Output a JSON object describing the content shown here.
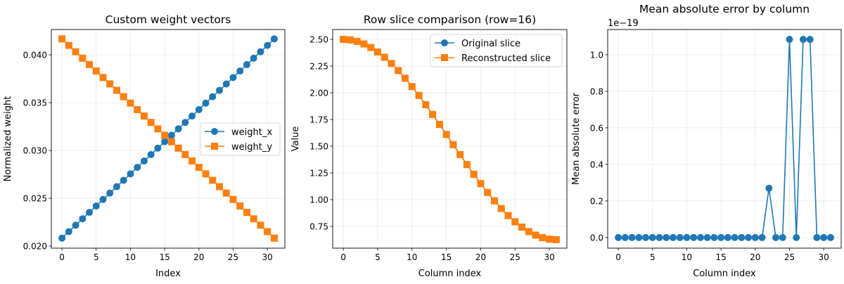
{
  "chart_data": [
    {
      "type": "line",
      "title": "Custom weight vectors",
      "xlabel": "Index",
      "ylabel": "Normalized weight",
      "xlim": [
        -1.55,
        32.55
      ],
      "ylim": [
        0.01978,
        0.04265
      ],
      "xticks": [
        0,
        5,
        10,
        15,
        20,
        25,
        30
      ],
      "xtick_labels": [
        "0",
        "5",
        "10",
        "15",
        "20",
        "25",
        "30"
      ],
      "yticks": [
        0.02,
        0.025,
        0.03,
        0.035,
        0.04
      ],
      "ytick_labels": [
        "0.020",
        "0.025",
        "0.030",
        "0.035",
        "0.040"
      ],
      "grid": true,
      "legend": "center-right",
      "x": [
        0,
        1,
        2,
        3,
        4,
        5,
        6,
        7,
        8,
        9,
        10,
        11,
        12,
        13,
        14,
        15,
        16,
        17,
        18,
        19,
        20,
        21,
        22,
        23,
        24,
        25,
        26,
        27,
        28,
        29,
        30,
        31
      ],
      "series": [
        {
          "name": "weight_x",
          "color": "#1f77b4",
          "marker": "circle",
          "values": [
            0.02083,
            0.02151,
            0.02218,
            0.02285,
            0.02352,
            0.02419,
            0.02487,
            0.02554,
            0.02621,
            0.02688,
            0.02755,
            0.02823,
            0.0289,
            0.02957,
            0.03024,
            0.03091,
            0.03159,
            0.03226,
            0.03293,
            0.0336,
            0.03427,
            0.03495,
            0.03562,
            0.03629,
            0.03696,
            0.03763,
            0.03831,
            0.03898,
            0.03965,
            0.04032,
            0.04099,
            0.04167
          ]
        },
        {
          "name": "weight_y",
          "color": "#ff7f0e",
          "marker": "square",
          "values": [
            0.04167,
            0.04099,
            0.04032,
            0.03965,
            0.03898,
            0.03831,
            0.03763,
            0.03696,
            0.03629,
            0.03562,
            0.03495,
            0.03427,
            0.0336,
            0.03293,
            0.03226,
            0.03159,
            0.03091,
            0.03024,
            0.02957,
            0.0289,
            0.02823,
            0.02755,
            0.02688,
            0.02621,
            0.02554,
            0.02487,
            0.02419,
            0.02352,
            0.02285,
            0.02218,
            0.02151,
            0.02083
          ]
        }
      ]
    },
    {
      "type": "line",
      "title": "Row slice comparison (row=16)",
      "xlabel": "Column index",
      "ylabel": "Value",
      "xlim": [
        -1.55,
        32.55
      ],
      "ylim": [
        0.546,
        2.592
      ],
      "xticks": [
        0,
        5,
        10,
        15,
        20,
        25,
        30
      ],
      "xtick_labels": [
        "0",
        "5",
        "10",
        "15",
        "20",
        "25",
        "30"
      ],
      "yticks": [
        0.75,
        1.0,
        1.25,
        1.5,
        1.75,
        2.0,
        2.25,
        2.5
      ],
      "ytick_labels": [
        "0.75",
        "1.00",
        "1.25",
        "1.50",
        "1.75",
        "2.00",
        "2.25",
        "2.50"
      ],
      "grid": true,
      "legend": "top-right",
      "x": [
        0,
        1,
        2,
        3,
        4,
        5,
        6,
        7,
        8,
        9,
        10,
        11,
        12,
        13,
        14,
        15,
        16,
        17,
        18,
        19,
        20,
        21,
        22,
        23,
        24,
        25,
        26,
        27,
        28,
        29,
        30,
        31
      ],
      "series": [
        {
          "name": "Original slice",
          "color": "#1f77b4",
          "marker": "circle",
          "values": [
            2.5,
            2.495,
            2.481,
            2.457,
            2.424,
            2.382,
            2.332,
            2.274,
            2.208,
            2.136,
            2.058,
            1.975,
            1.888,
            1.797,
            1.704,
            1.61,
            1.515,
            1.421,
            1.328,
            1.237,
            1.15,
            1.067,
            0.989,
            0.917,
            0.851,
            0.793,
            0.743,
            0.701,
            0.668,
            0.644,
            0.63,
            0.625
          ]
        },
        {
          "name": "Reconstructed slice",
          "color": "#ff7f0e",
          "marker": "square",
          "values": [
            2.5,
            2.495,
            2.481,
            2.457,
            2.424,
            2.382,
            2.332,
            2.274,
            2.208,
            2.136,
            2.058,
            1.975,
            1.888,
            1.797,
            1.704,
            1.61,
            1.515,
            1.421,
            1.328,
            1.237,
            1.15,
            1.067,
            0.989,
            0.917,
            0.851,
            0.793,
            0.743,
            0.701,
            0.668,
            0.644,
            0.63,
            0.625
          ]
        }
      ]
    },
    {
      "type": "line",
      "title": "Mean absolute error by column",
      "xlabel": "Column index",
      "ylabel": "Mean absolute error",
      "offset_text": "1e−19",
      "scale": 1e-19,
      "xlim": [
        -1.55,
        32.55
      ],
      "ylim": [
        -5.8e-21,
        1.138e-19
      ],
      "xticks": [
        0,
        5,
        10,
        15,
        20,
        25,
        30
      ],
      "xtick_labels": [
        "0",
        "5",
        "10",
        "15",
        "20",
        "25",
        "30"
      ],
      "yticks": [
        0,
        2e-20,
        4e-20,
        6e-20,
        8e-20,
        1e-19
      ],
      "ytick_labels": [
        "0.0",
        "0.2",
        "0.4",
        "0.6",
        "0.8",
        "1.0"
      ],
      "grid": true,
      "legend": "none",
      "x": [
        0,
        1,
        2,
        3,
        4,
        5,
        6,
        7,
        8,
        9,
        10,
        11,
        12,
        13,
        14,
        15,
        16,
        17,
        18,
        19,
        20,
        21,
        22,
        23,
        24,
        25,
        26,
        27,
        28,
        29,
        30,
        31
      ],
      "series": [
        {
          "color": "#1f77b4",
          "marker": "circle",
          "values": [
            0,
            0,
            0,
            0,
            0,
            0,
            0,
            0,
            0,
            0,
            0,
            0,
            0,
            0,
            0,
            0,
            0,
            0,
            0,
            0,
            0,
            0,
            2.7e-20,
            0,
            0,
            1.084e-19,
            0,
            1.084e-19,
            1.084e-19,
            0,
            0,
            0
          ]
        }
      ]
    }
  ]
}
